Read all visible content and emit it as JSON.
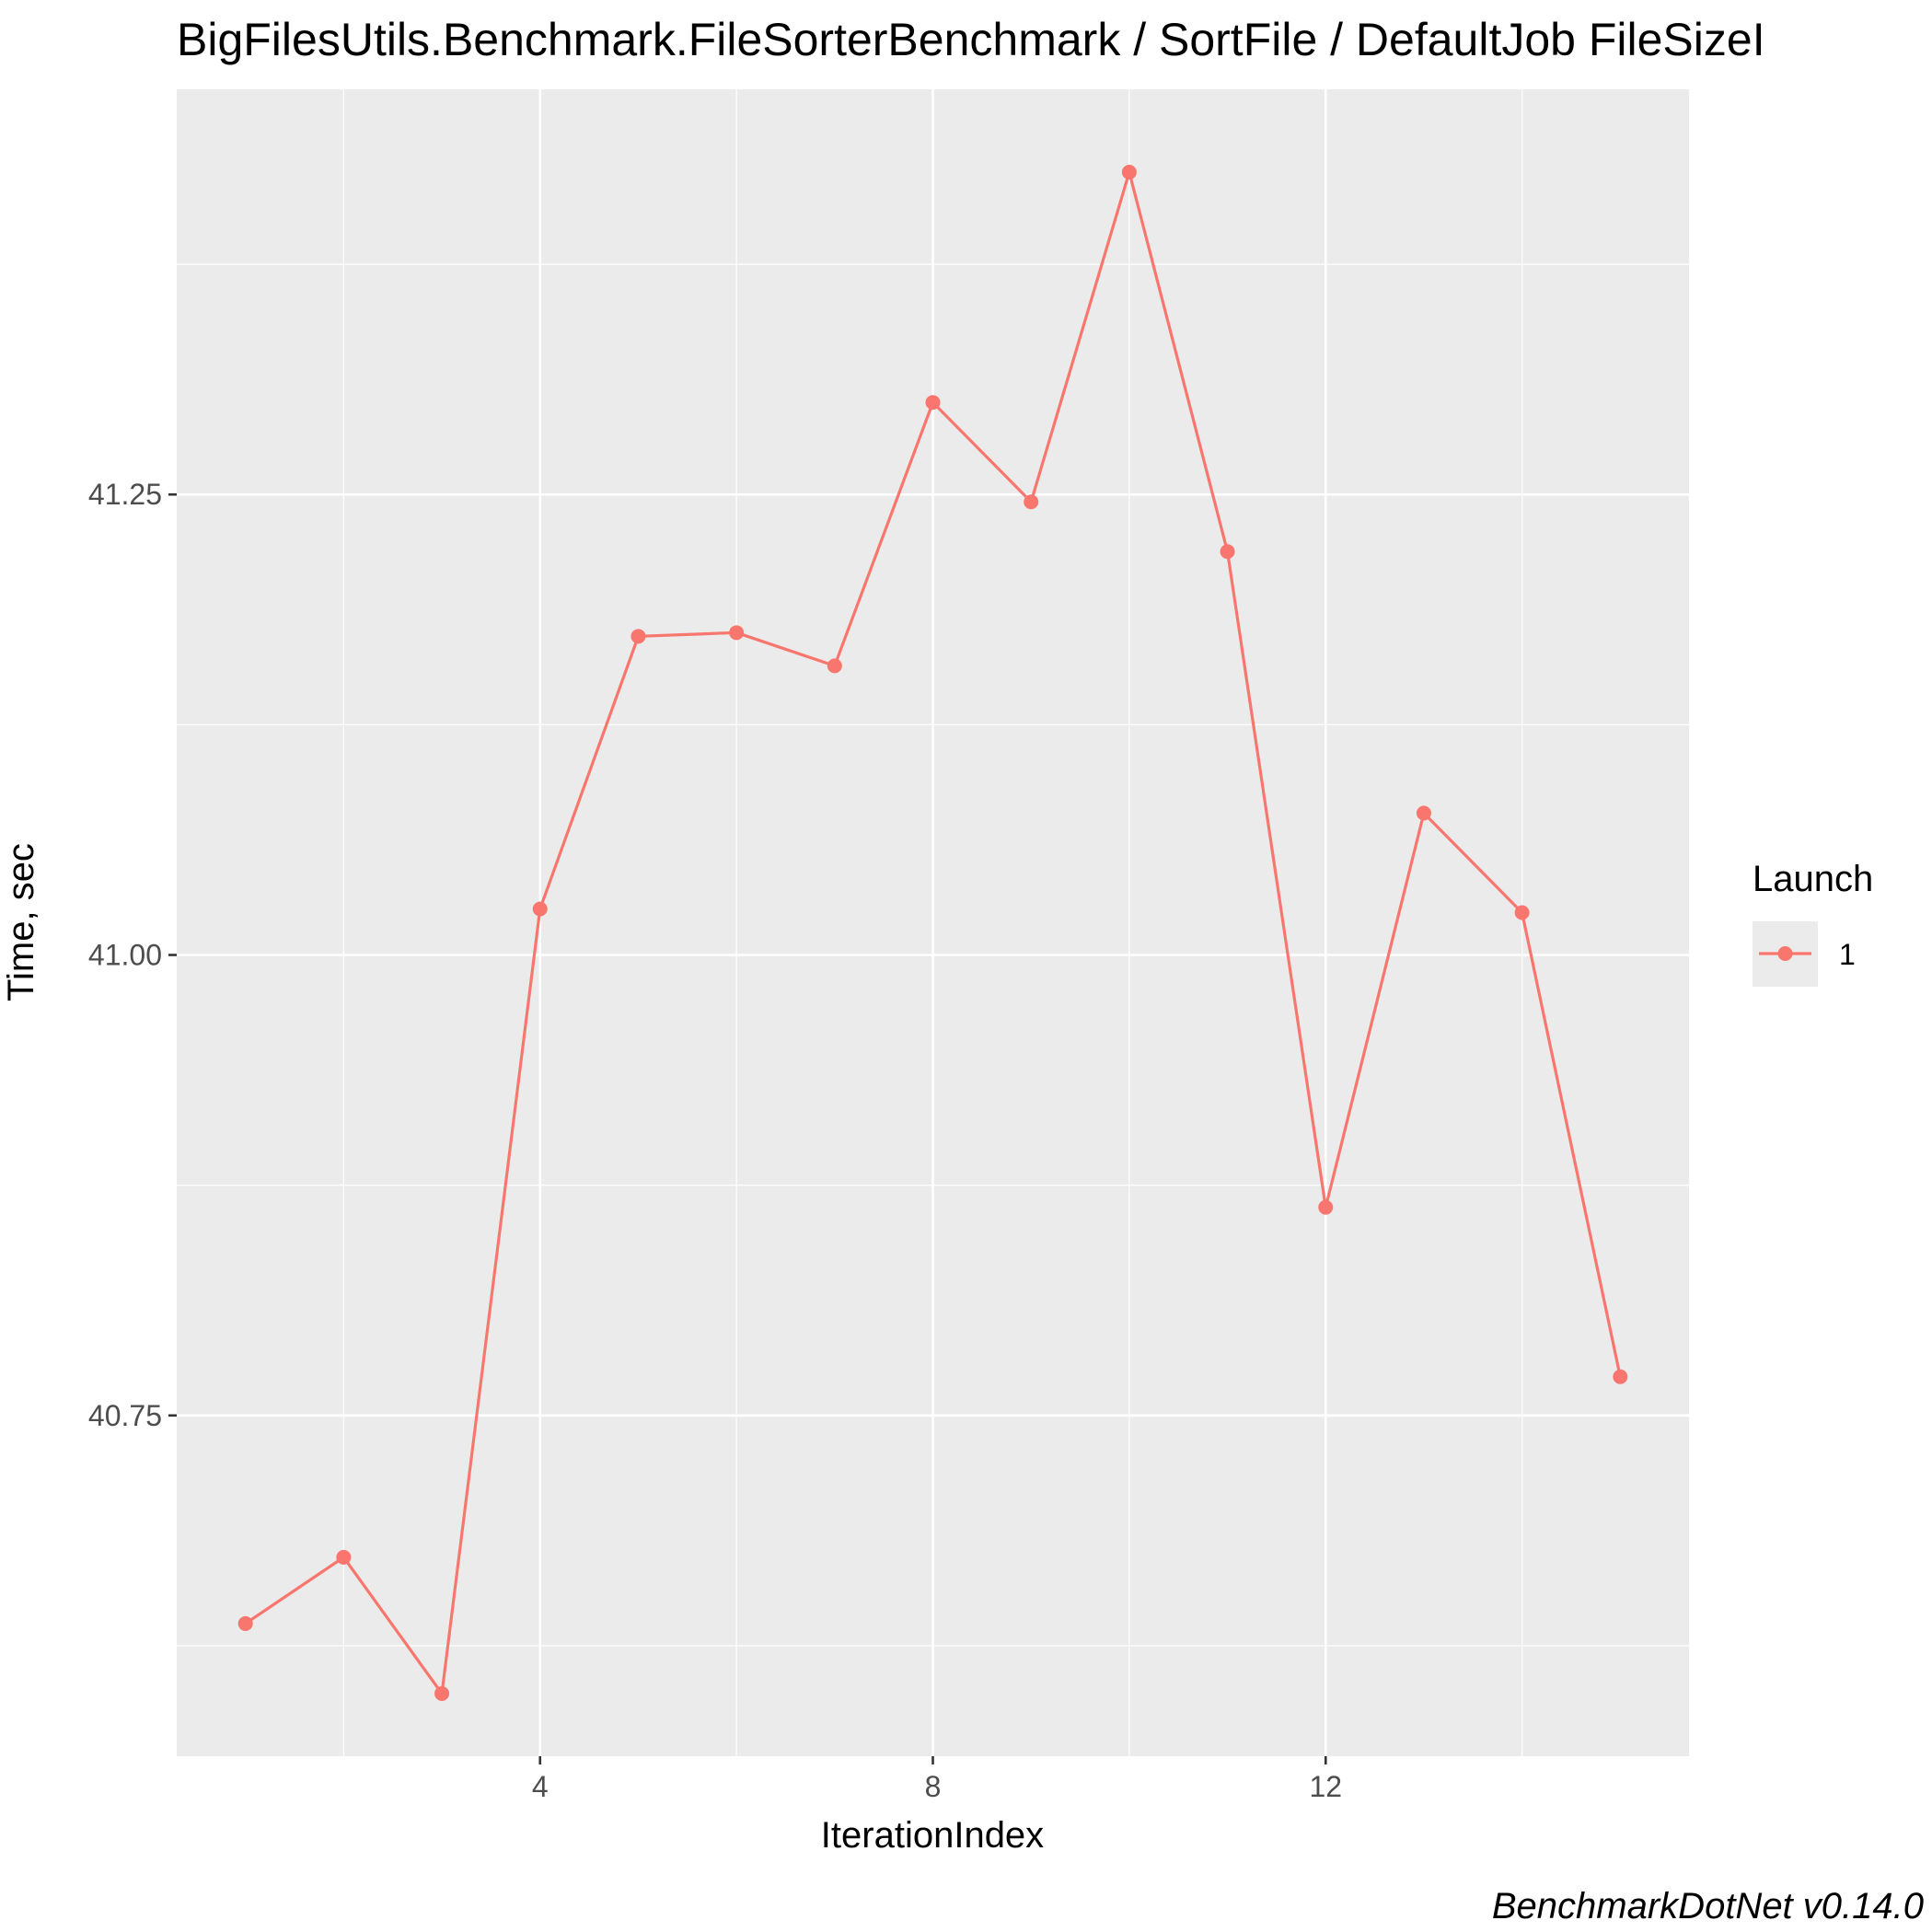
{
  "chart_data": {
    "type": "line",
    "title": "BigFilesUtils.Benchmark.FileSorterBenchmark / SortFile / DefaultJob FileSizeI",
    "xlabel": "IterationIndex",
    "ylabel": "Time, sec",
    "xlim": [
      0.3,
      15.7
    ],
    "ylim": [
      40.565,
      41.47
    ],
    "x_ticks": [
      4,
      8,
      12
    ],
    "x_tick_labels": [
      "4",
      "8",
      "12"
    ],
    "y_ticks": [
      40.75,
      41.0,
      41.25
    ],
    "y_tick_labels": [
      "40.75",
      "41.00",
      "41.25"
    ],
    "grid": true,
    "legend": {
      "title": "Launch",
      "position": "right",
      "entries": [
        "1"
      ]
    },
    "series": [
      {
        "name": "1",
        "color": "#F8766D",
        "x": [
          1,
          2,
          3,
          4,
          5,
          6,
          7,
          8,
          9,
          10,
          11,
          12,
          13,
          14,
          15
        ],
        "y": [
          40.637,
          40.673,
          40.599,
          41.025,
          41.173,
          41.175,
          41.157,
          41.3,
          41.246,
          41.425,
          41.219,
          40.863,
          41.077,
          41.023,
          40.771
        ]
      }
    ],
    "caption": "BenchmarkDotNet v0.14.0"
  },
  "colors": {
    "panel_background": "#EBEBEB",
    "grid_major": "#FFFFFF",
    "series": "#F8766D"
  }
}
